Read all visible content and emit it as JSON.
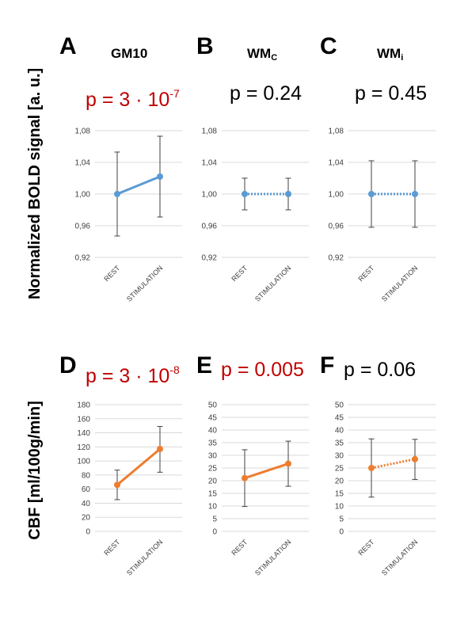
{
  "figure": {
    "row_labels": {
      "bold": "Normalized BOLD signal [a. u.]",
      "cbf": "CBF [ml/100g/min]"
    },
    "colors": {
      "blue": "#5b9bd5",
      "orange": "#ed7d31",
      "significant": "#c00000",
      "error_bar": "#404040",
      "grid": "#d9d9d9"
    },
    "panels": [
      {
        "letter": "A",
        "title": "GM10",
        "title_sub": "",
        "p_main": "p = 3 · 10",
        "p_sup": "-7",
        "significant": true
      },
      {
        "letter": "B",
        "title": "WM",
        "title_sub": "C",
        "p_main": "p = 0.24",
        "p_sup": "",
        "significant": false
      },
      {
        "letter": "C",
        "title": "WM",
        "title_sub": "i",
        "p_main": "p = 0.45",
        "p_sup": "",
        "significant": false
      },
      {
        "letter": "D",
        "title": "",
        "title_sub": "",
        "p_main": "p = 3 · 10",
        "p_sup": "-8",
        "significant": true
      },
      {
        "letter": "E",
        "title": "",
        "title_sub": "",
        "p_main": "p = 0.005",
        "p_sup": "",
        "significant": true
      },
      {
        "letter": "F",
        "title": "",
        "title_sub": "",
        "p_main": "p = 0.06",
        "p_sup": "",
        "significant": false
      }
    ]
  },
  "chart_data": [
    {
      "type": "line",
      "panel": "A",
      "categories": [
        "REST",
        "STIMULATION"
      ],
      "values": [
        1.0,
        1.022
      ],
      "error_low": [
        0.947,
        0.971
      ],
      "error_high": [
        1.053,
        1.073
      ],
      "ylim": [
        0.92,
        1.08
      ],
      "yticks": [
        "0,92",
        "0,96",
        "1,00",
        "1,04",
        "1,08"
      ],
      "color": "#5b9bd5",
      "line_style": "solid",
      "grid": true
    },
    {
      "type": "line",
      "panel": "B",
      "categories": [
        "REST",
        "STIMULATION"
      ],
      "values": [
        1.0,
        1.0
      ],
      "error_low": [
        0.98,
        0.98
      ],
      "error_high": [
        1.02,
        1.02
      ],
      "ylim": [
        0.92,
        1.08
      ],
      "yticks": [
        "0,92",
        "0,96",
        "1,00",
        "1,04",
        "1,08"
      ],
      "color": "#5b9bd5",
      "line_style": "dotted",
      "grid": true
    },
    {
      "type": "line",
      "panel": "C",
      "categories": [
        "REST",
        "STIMULATION"
      ],
      "values": [
        1.0,
        1.0
      ],
      "error_low": [
        0.958,
        0.958
      ],
      "error_high": [
        1.042,
        1.042
      ],
      "ylim": [
        0.92,
        1.08
      ],
      "yticks": [
        "0,92",
        "0,96",
        "1,00",
        "1,04",
        "1,08"
      ],
      "color": "#5b9bd5",
      "line_style": "dotted",
      "grid": true
    },
    {
      "type": "line",
      "panel": "D",
      "categories": [
        "REST",
        "STIMULATION"
      ],
      "values": [
        66,
        117
      ],
      "error_low": [
        45,
        84
      ],
      "error_high": [
        87,
        149
      ],
      "ylim": [
        0,
        180
      ],
      "yticks": [
        "0",
        "20",
        "40",
        "60",
        "80",
        "100",
        "120",
        "140",
        "160",
        "180"
      ],
      "color": "#ed7d31",
      "line_style": "solid",
      "grid": true
    },
    {
      "type": "line",
      "panel": "E",
      "categories": [
        "REST",
        "STIMULATION"
      ],
      "values": [
        21,
        26.7
      ],
      "error_low": [
        9.8,
        17.8
      ],
      "error_high": [
        32.2,
        35.6
      ],
      "ylim": [
        0,
        50
      ],
      "yticks": [
        "0",
        "5",
        "10",
        "15",
        "20",
        "25",
        "30",
        "35",
        "40",
        "45",
        "50"
      ],
      "color": "#ed7d31",
      "line_style": "solid",
      "grid": true
    },
    {
      "type": "line",
      "panel": "F",
      "categories": [
        "REST",
        "STIMULATION"
      ],
      "values": [
        25,
        28.5
      ],
      "error_low": [
        13.5,
        20.5
      ],
      "error_high": [
        36.5,
        36.3
      ],
      "ylim": [
        0,
        50
      ],
      "yticks": [
        "0",
        "5",
        "10",
        "15",
        "20",
        "25",
        "30",
        "35",
        "40",
        "45",
        "50"
      ],
      "color": "#ed7d31",
      "line_style": "dotted",
      "grid": true
    }
  ]
}
